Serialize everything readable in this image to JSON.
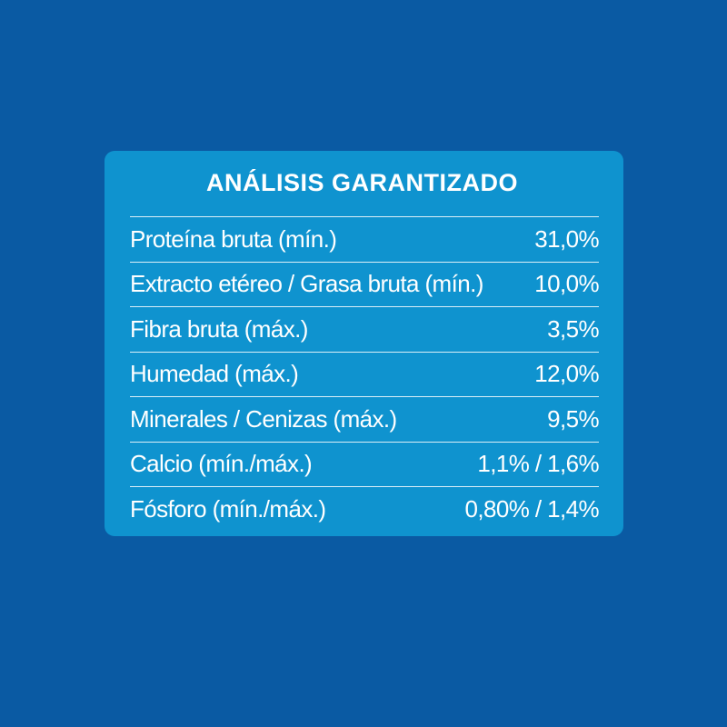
{
  "colors": {
    "background": "#0a5aa3",
    "panel": "#0f93cf",
    "text": "#ffffff"
  },
  "panel": {
    "title": "ANÁLISIS GARANTIZADO",
    "rows": [
      {
        "label": "Proteína bruta (mín.)",
        "value": "31,0%"
      },
      {
        "label": "Extracto etéreo / Grasa bruta (mín.)",
        "value": "10,0%"
      },
      {
        "label": "Fibra bruta (máx.)",
        "value": "3,5%"
      },
      {
        "label": "Humedad (máx.)",
        "value": "12,0%"
      },
      {
        "label": "Minerales / Cenizas (máx.)",
        "value": "9,5%"
      },
      {
        "label": "Calcio (mín./máx.)",
        "value": "1,1% / 1,6%"
      },
      {
        "label": "Fósforo (mín./máx.)",
        "value": "0,80% / 1,4%"
      }
    ]
  }
}
